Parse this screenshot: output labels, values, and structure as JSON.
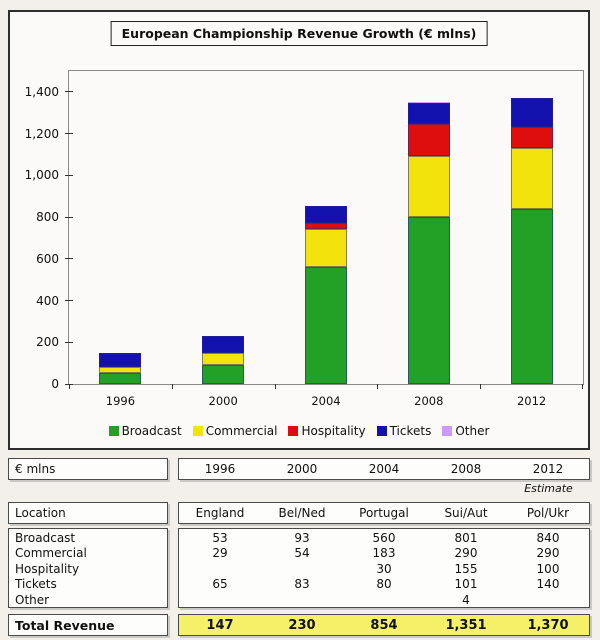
{
  "title": "European Championship Revenue Growth (€ mlns)",
  "chart_data": {
    "type": "bar",
    "stacked": true,
    "title": "European Championship Revenue Growth (€ mlns)",
    "categories": [
      "1996",
      "2000",
      "2004",
      "2008",
      "2012"
    ],
    "series": [
      {
        "name": "Broadcast",
        "color": "#23a127",
        "values": [
          53,
          93,
          560,
          801,
          840
        ]
      },
      {
        "name": "Commercial",
        "color": "#f2e30c",
        "values": [
          29,
          54,
          183,
          290,
          290
        ]
      },
      {
        "name": "Hospitality",
        "color": "#dc0e0e",
        "values": [
          0,
          0,
          30,
          155,
          100
        ]
      },
      {
        "name": "Tickets",
        "color": "#1412ae",
        "values": [
          65,
          83,
          80,
          101,
          140
        ]
      },
      {
        "name": "Other",
        "color": "#cc99ff",
        "values": [
          0,
          0,
          0,
          4,
          0
        ]
      }
    ],
    "totals": [
      147,
      230,
      854,
      1351,
      1370
    ],
    "xlabel": "",
    "ylabel": "",
    "ylim": [
      0,
      1500
    ],
    "yticks": [
      "0",
      "200",
      "400",
      "600",
      "800",
      "1,000",
      "1,200",
      "1,400"
    ],
    "grid": false,
    "legend_position": "bottom"
  },
  "table": {
    "units_label": "€ mlns",
    "years": [
      "1996",
      "2000",
      "2004",
      "2008",
      "2012"
    ],
    "estimate_note": "Estimate",
    "location_label": "Location",
    "locations": [
      "England",
      "Bel/Ned",
      "Portugal",
      "Sui/Aut",
      "Pol/Ukr"
    ],
    "rows": [
      {
        "label": "Broadcast",
        "values": [
          "53",
          "93",
          "560",
          "801",
          "840"
        ]
      },
      {
        "label": "Commercial",
        "values": [
          "29",
          "54",
          "183",
          "290",
          "290"
        ]
      },
      {
        "label": "Hospitality",
        "values": [
          "",
          "",
          "30",
          "155",
          "100"
        ]
      },
      {
        "label": "Tickets",
        "values": [
          "65",
          "83",
          "80",
          "101",
          "140"
        ]
      },
      {
        "label": "Other",
        "values": [
          "",
          "",
          "",
          "4",
          ""
        ]
      }
    ],
    "total": {
      "label": "Total Revenue",
      "values": [
        "147",
        "230",
        "854",
        "1,351",
        "1,370"
      ]
    },
    "total_bg": "#f4f169"
  }
}
